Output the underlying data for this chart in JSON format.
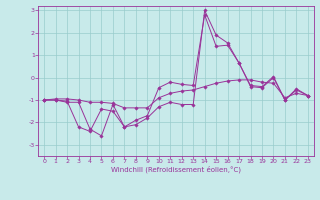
{
  "title": "",
  "xlabel": "Windchill (Refroidissement éolien,°C)",
  "bg_color": "#c8eaea",
  "line_color": "#993399",
  "grid_color": "#99cccc",
  "xlim": [
    -0.5,
    23.5
  ],
  "ylim": [
    -3.5,
    3.2
  ],
  "xticks": [
    0,
    1,
    2,
    3,
    4,
    5,
    6,
    7,
    8,
    9,
    10,
    11,
    12,
    13,
    14,
    15,
    16,
    17,
    18,
    19,
    20,
    21,
    22,
    23
  ],
  "yticks": [
    -3,
    -2,
    -1,
    0,
    1,
    2,
    3
  ],
  "line1_x": [
    0,
    1,
    2,
    3,
    4,
    5,
    6,
    7,
    8,
    9,
    10,
    11,
    12,
    13,
    14,
    15,
    16,
    17,
    18,
    19,
    20,
    21,
    22,
    23
  ],
  "line1_y": [
    -1.0,
    -1.0,
    -1.1,
    -1.1,
    -2.3,
    -2.6,
    -1.2,
    -2.2,
    -2.1,
    -1.8,
    -1.3,
    -1.1,
    -1.2,
    -1.2,
    3.0,
    1.9,
    1.55,
    0.65,
    -0.4,
    -0.45,
    0.0,
    -1.0,
    -0.5,
    -0.8
  ],
  "line2_x": [
    0,
    1,
    2,
    3,
    4,
    5,
    6,
    7,
    8,
    9,
    10,
    11,
    12,
    13,
    14,
    15,
    16,
    17,
    18,
    19,
    20,
    21,
    22,
    23
  ],
  "line2_y": [
    -1.0,
    -1.0,
    -1.05,
    -2.2,
    -2.4,
    -1.4,
    -1.5,
    -2.2,
    -1.9,
    -1.7,
    -0.45,
    -0.2,
    -0.3,
    -0.35,
    2.8,
    1.4,
    1.45,
    0.65,
    -0.35,
    -0.4,
    0.05,
    -1.0,
    -0.55,
    -0.8
  ],
  "line3_x": [
    0,
    1,
    2,
    3,
    4,
    5,
    6,
    7,
    8,
    9,
    10,
    11,
    12,
    13,
    14,
    15,
    16,
    17,
    18,
    19,
    20,
    21,
    22,
    23
  ],
  "line3_y": [
    -1.0,
    -0.95,
    -0.95,
    -1.0,
    -1.1,
    -1.1,
    -1.15,
    -1.35,
    -1.35,
    -1.35,
    -0.9,
    -0.7,
    -0.6,
    -0.55,
    -0.4,
    -0.25,
    -0.15,
    -0.1,
    -0.1,
    -0.2,
    -0.25,
    -0.9,
    -0.7,
    -0.8
  ],
  "tick_fontsize": 4.5,
  "xlabel_fontsize": 5.0,
  "marker": "D",
  "markersize": 1.8,
  "linewidth": 0.7
}
